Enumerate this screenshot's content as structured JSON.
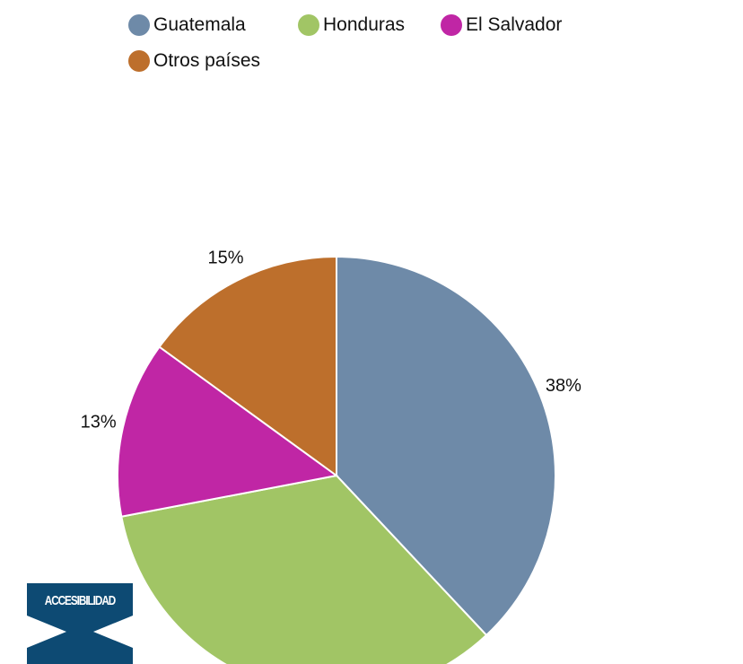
{
  "chart_data": {
    "type": "pie",
    "categories": [
      "Guatemala",
      "Honduras",
      "El Salvador",
      "Otros países"
    ],
    "values": [
      38,
      34,
      13,
      15
    ],
    "labels": [
      "38%",
      "",
      "13%",
      "15%"
    ],
    "colors": [
      "#6e8aa8",
      "#a1c565",
      "#c026a5",
      "#bd6f2c"
    ],
    "legend_position": "top"
  },
  "badge": {
    "text": "ACCESIBILIDAD",
    "color": "#0d4a73",
    "icon": "accessibility-icon"
  }
}
